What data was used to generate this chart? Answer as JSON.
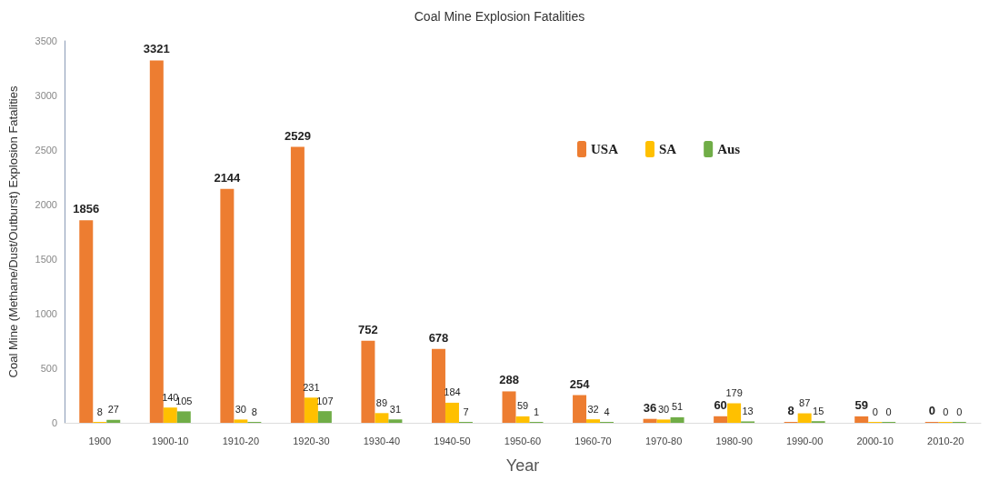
{
  "chart_data": {
    "type": "bar",
    "title": "Coal Mine Explosion Fatalities",
    "xlabel": "Year",
    "ylabel": "Coal Mine (Methane/Dust/Outburst) Explosion Fatalities",
    "categories": [
      "1900",
      "1900-10",
      "1910-20",
      "1920-30",
      "1930-40",
      "1940-50",
      "1950-60",
      "1960-70",
      "1970-80",
      "1980-90",
      "1990-00",
      "2000-10",
      "2010-20"
    ],
    "series": [
      {
        "name": "USA",
        "color": "#ed7d31",
        "values": [
          1856,
          3321,
          2144,
          2529,
          752,
          678,
          288,
          254,
          36,
          60,
          8,
          59,
          0
        ]
      },
      {
        "name": "SA",
        "color": "#ffc000",
        "values": [
          8,
          140,
          30,
          231,
          89,
          184,
          59,
          32,
          30,
          179,
          87,
          0,
          0
        ]
      },
      {
        "name": "Aus",
        "color": "#70ad47",
        "values": [
          27,
          105,
          8,
          107,
          31,
          7,
          1,
          4,
          51,
          13,
          15,
          0,
          0
        ]
      }
    ],
    "ylim": [
      0,
      3500
    ],
    "yticks": [
      0,
      500,
      1000,
      1500,
      2000,
      2500,
      3000,
      3500
    ],
    "grid": false,
    "legend": "top right",
    "data_labels": true
  }
}
